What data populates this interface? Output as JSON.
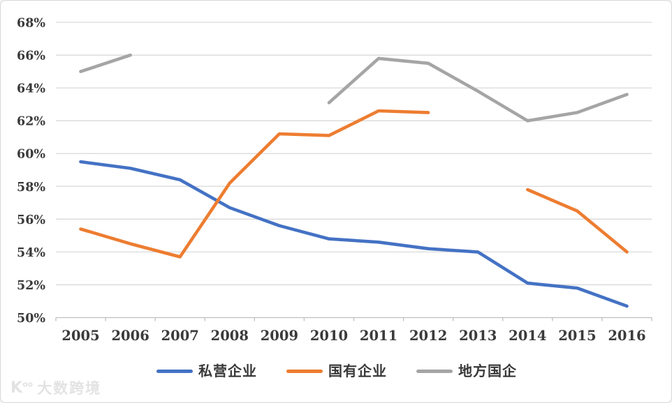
{
  "chart_data": {
    "type": "line",
    "title": "",
    "xlabel": "",
    "ylabel": "",
    "categories": [
      "2005",
      "2006",
      "2007",
      "2008",
      "2009",
      "2010",
      "2011",
      "2012",
      "2013",
      "2014",
      "2015",
      "2016"
    ],
    "series": [
      {
        "name": "私营企业",
        "color": "#4472C4",
        "values": [
          59.5,
          59.1,
          58.4,
          56.7,
          55.6,
          54.8,
          54.6,
          54.2,
          54.0,
          52.1,
          51.8,
          50.7
        ]
      },
      {
        "name": "国有企业",
        "color": "#ED7D31",
        "values": [
          55.4,
          54.5,
          53.7,
          58.2,
          61.2,
          61.1,
          62.6,
          62.5,
          null,
          57.8,
          56.5,
          54.0
        ]
      },
      {
        "name": "地方国企",
        "color": "#A5A5A5",
        "values": [
          65.0,
          66.0,
          null,
          null,
          null,
          63.1,
          65.8,
          65.5,
          63.8,
          62.0,
          62.5,
          63.6
        ]
      }
    ],
    "ylim": [
      50,
      68
    ],
    "ytick_step": 2,
    "ytick_labels": [
      "50%",
      "52%",
      "54%",
      "56%",
      "58%",
      "60%",
      "62%",
      "64%",
      "66%",
      "68%"
    ],
    "grid": "horizontal",
    "legend_position": "bottom"
  },
  "colors": {
    "gridline": "#D9D9D9",
    "axis": "#BFBFBF",
    "tick_label": "#3A3A3A",
    "background": "#FFFFFF"
  },
  "watermark": {
    "logo": "K",
    "logo_sup": "oo",
    "text": "大数跨境"
  }
}
